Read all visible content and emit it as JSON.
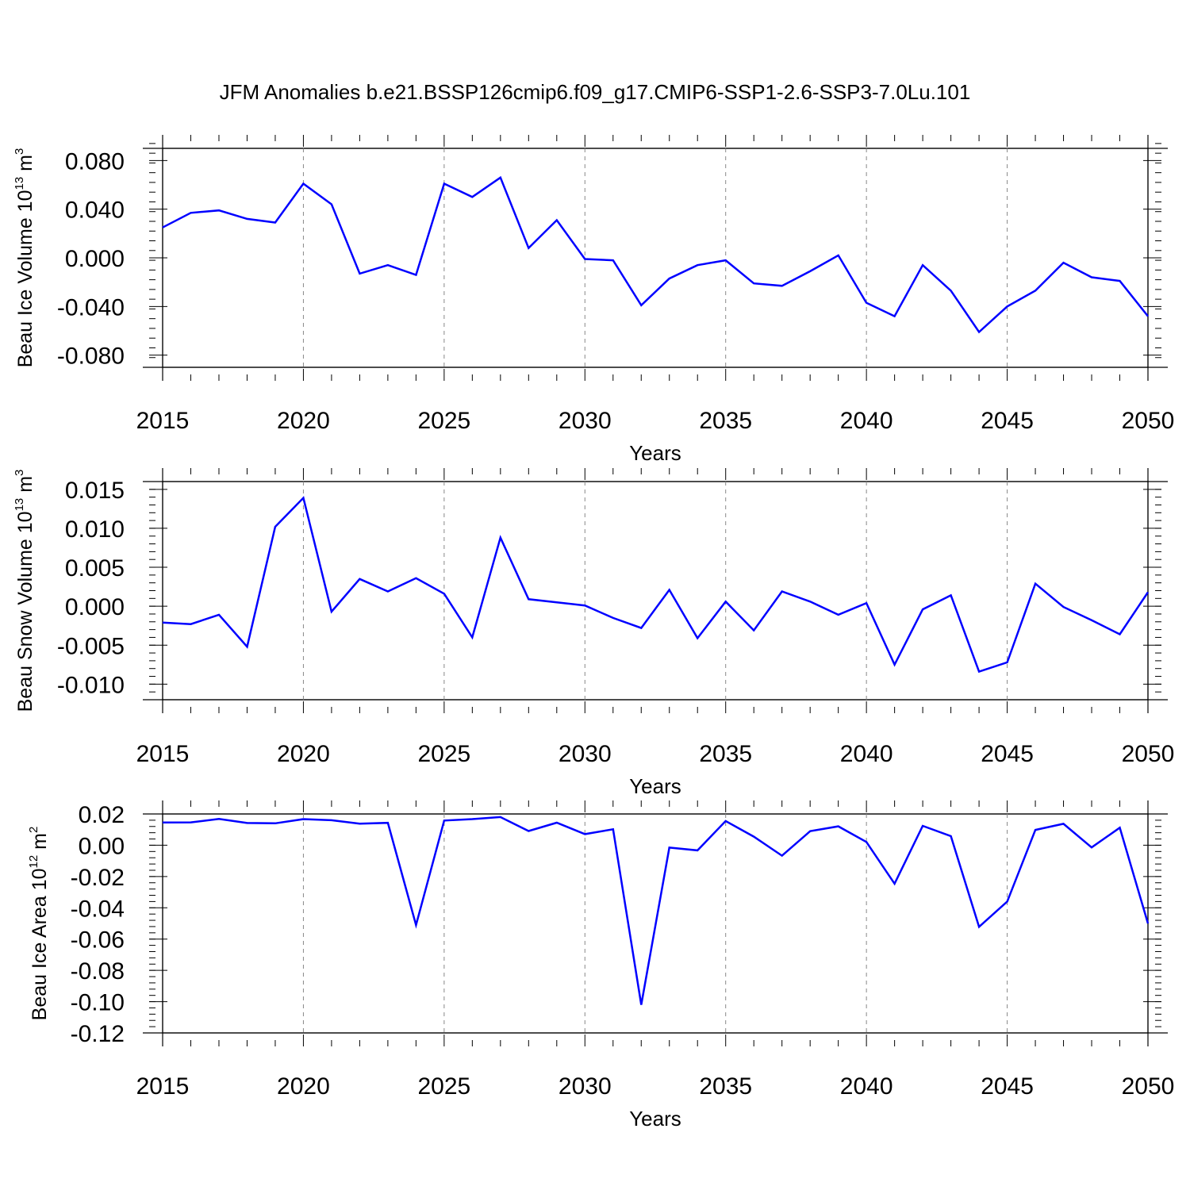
{
  "chart_data": [
    {
      "type": "line",
      "title": "JFM Anomalies b.e21.BSSP126cmip6.f09_g17.CMIP6-SSP1-2.6-SSP3-7.0Lu.101",
      "xlabel": "Years",
      "ylabel": {
        "base": "Beau Ice Volume 10",
        "exp": "13",
        "unit": " m",
        "unit_exp": "3"
      },
      "xlim": [
        2015,
        2050
      ],
      "ylim": [
        -0.09,
        0.09
      ],
      "yticks": [
        "0.080",
        "0.040",
        "0.000",
        "-0.040",
        "-0.080"
      ],
      "ytick_values": [
        0.08,
        0.04,
        0.0,
        -0.04,
        -0.08
      ],
      "yminor_step": 0.008,
      "xticks": [
        2015,
        2020,
        2025,
        2030,
        2035,
        2040,
        2045,
        2050
      ],
      "x": [
        2015,
        2016,
        2017,
        2018,
        2019,
        2020,
        2021,
        2022,
        2023,
        2024,
        2025,
        2026,
        2027,
        2028,
        2029,
        2030,
        2031,
        2032,
        2033,
        2034,
        2035,
        2036,
        2037,
        2038,
        2039,
        2040,
        2041,
        2042,
        2043,
        2044,
        2045,
        2046,
        2047,
        2048,
        2049,
        2050
      ],
      "series": [
        {
          "name": "Beau Ice Volume",
          "color": "#0000ff",
          "values": [
            0.025,
            0.037,
            0.039,
            0.032,
            0.029,
            0.061,
            0.044,
            -0.013,
            -0.006,
            -0.014,
            0.061,
            0.05,
            0.066,
            0.008,
            0.031,
            -0.001,
            -0.002,
            -0.039,
            -0.017,
            -0.006,
            -0.002,
            -0.021,
            -0.023,
            -0.011,
            0.002,
            -0.037,
            -0.048,
            -0.006,
            -0.027,
            -0.061,
            -0.04,
            -0.027,
            -0.004,
            -0.016,
            -0.019,
            -0.048
          ]
        }
      ]
    },
    {
      "type": "line",
      "xlabel": "Years",
      "ylabel": {
        "base": "Beau Snow Volume 10",
        "exp": "13",
        "unit": " m",
        "unit_exp": "3"
      },
      "xlim": [
        2015,
        2050
      ],
      "ylim": [
        -0.012,
        0.016
      ],
      "yticks": [
        "0.015",
        "0.010",
        "0.005",
        "0.000",
        "-0.005",
        "-0.010"
      ],
      "ytick_values": [
        0.015,
        0.01,
        0.005,
        0.0,
        -0.005,
        -0.01
      ],
      "yminor_step": 0.001,
      "xticks": [
        2015,
        2020,
        2025,
        2030,
        2035,
        2040,
        2045,
        2050
      ],
      "x": [
        2015,
        2016,
        2017,
        2018,
        2019,
        2020,
        2021,
        2022,
        2023,
        2024,
        2025,
        2026,
        2027,
        2028,
        2029,
        2030,
        2031,
        2032,
        2033,
        2034,
        2035,
        2036,
        2037,
        2038,
        2039,
        2040,
        2041,
        2042,
        2043,
        2044,
        2045,
        2046,
        2047,
        2048,
        2049,
        2050
      ],
      "series": [
        {
          "name": "Beau Snow Volume",
          "color": "#0000ff",
          "values": [
            -0.0021,
            -0.0023,
            -0.0011,
            -0.0052,
            0.0102,
            0.0139,
            -0.0007,
            0.0035,
            0.0019,
            0.0036,
            0.0016,
            -0.004,
            0.0088,
            0.0009,
            0.0005,
            0.0001,
            -0.0015,
            -0.0028,
            0.0021,
            -0.0041,
            0.0006,
            -0.0031,
            0.0019,
            0.0006,
            -0.0011,
            0.0004,
            -0.0075,
            -0.0004,
            0.0014,
            -0.0084,
            -0.0072,
            0.0029,
            -0.0001,
            -0.0018,
            -0.0036,
            0.0018
          ]
        }
      ]
    },
    {
      "type": "line",
      "xlabel": "Years",
      "ylabel": {
        "base": "Beau Ice Area 10",
        "exp": "12",
        "unit": " m",
        "unit_exp": "2"
      },
      "xlim": [
        2015,
        2050
      ],
      "ylim": [
        -0.12,
        0.02
      ],
      "yticks": [
        "0.02",
        "0.00",
        "-0.02",
        "-0.04",
        "-0.06",
        "-0.08",
        "-0.10",
        "-0.12"
      ],
      "ytick_values": [
        0.02,
        0.0,
        -0.02,
        -0.04,
        -0.06,
        -0.08,
        -0.1,
        -0.12
      ],
      "yminor_step": 0.004,
      "xticks": [
        2015,
        2020,
        2025,
        2030,
        2035,
        2040,
        2045,
        2050
      ],
      "x": [
        2015,
        2016,
        2017,
        2018,
        2019,
        2020,
        2021,
        2022,
        2023,
        2024,
        2025,
        2026,
        2027,
        2028,
        2029,
        2030,
        2031,
        2032,
        2033,
        2034,
        2035,
        2036,
        2037,
        2038,
        2039,
        2040,
        2041,
        2042,
        2043,
        2044,
        2045,
        2046,
        2047,
        2048,
        2049,
        2050
      ],
      "series": [
        {
          "name": "Beau Ice Area",
          "color": "#0000ff",
          "values": [
            0.0145,
            0.0146,
            0.0168,
            0.0142,
            0.014,
            0.0167,
            0.016,
            0.0138,
            0.0143,
            -0.051,
            0.0158,
            0.0167,
            0.018,
            0.0091,
            0.0144,
            0.0071,
            0.0102,
            -0.102,
            -0.0015,
            -0.0033,
            0.0155,
            0.0055,
            -0.0067,
            0.009,
            0.0121,
            0.0021,
            -0.0246,
            0.0124,
            0.0058,
            -0.0522,
            -0.036,
            0.0098,
            0.0137,
            -0.0014,
            0.0112,
            -0.05
          ]
        }
      ]
    }
  ]
}
